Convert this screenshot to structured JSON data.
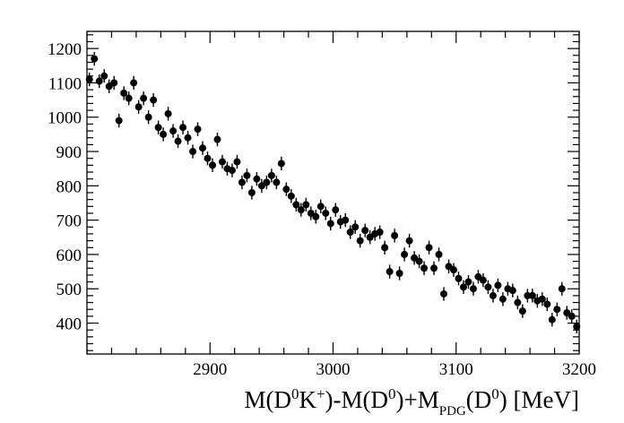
{
  "chart_data": {
    "type": "scatter",
    "xlabel": {
      "pre": "M(D",
      "sup1": "0",
      "mid1": "K",
      "sup2": "+",
      "mid2": ")-M(D",
      "sup3": "0",
      "mid3": ")+M",
      "sub": "PDG",
      "mid4": "(D",
      "sup4": "0",
      "post": ") [MeV]"
    },
    "ylabel": "",
    "xlim": [
      2800,
      3200
    ],
    "ylim": [
      310,
      1250
    ],
    "x_ticks": [
      "2900",
      "3000",
      "3100",
      "3200"
    ],
    "y_ticks": [
      "400",
      "500",
      "600",
      "700",
      "800",
      "900",
      "1000",
      "1100",
      "1200"
    ],
    "grid": false,
    "legend": "none",
    "marker": "filled circle with vertical error bar",
    "marker_color": "#000000",
    "series": [
      {
        "x": [
          2802,
          2806,
          2810,
          2814,
          2818,
          2822,
          2826,
          2830,
          2834,
          2838,
          2842,
          2846,
          2850,
          2854,
          2858,
          2862,
          2866,
          2870,
          2874,
          2878,
          2882,
          2886,
          2890,
          2894,
          2898,
          2902,
          2906,
          2910,
          2914,
          2918,
          2922,
          2926,
          2930,
          2934,
          2938,
          2942,
          2946,
          2950,
          2954,
          2958,
          2962,
          2966,
          2970,
          2974,
          2978,
          2982,
          2986,
          2990,
          2994,
          2998,
          3002,
          3006,
          3010,
          3014,
          3018,
          3022,
          3026,
          3030,
          3034,
          3038,
          3042,
          3046,
          3050,
          3054,
          3058,
          3062,
          3066,
          3070,
          3074,
          3078,
          3082,
          3086,
          3090,
          3094,
          3098,
          3102,
          3106,
          3110,
          3114,
          3118,
          3122,
          3126,
          3130,
          3134,
          3138,
          3142,
          3146,
          3150,
          3154,
          3158,
          3162,
          3166,
          3170,
          3174,
          3178,
          3182,
          3186,
          3190,
          3194,
          3198
        ],
        "y": [
          1110,
          1170,
          1105,
          1120,
          1090,
          1100,
          990,
          1070,
          1055,
          1100,
          1030,
          1055,
          1000,
          1050,
          970,
          950,
          1010,
          960,
          930,
          970,
          940,
          900,
          965,
          910,
          880,
          860,
          935,
          870,
          850,
          845,
          870,
          810,
          830,
          780,
          820,
          800,
          810,
          830,
          810,
          865,
          790,
          770,
          745,
          730,
          745,
          720,
          710,
          740,
          720,
          690,
          730,
          695,
          700,
          665,
          680,
          640,
          670,
          650,
          660,
          665,
          620,
          550,
          655,
          545,
          600,
          640,
          590,
          580,
          560,
          620,
          560,
          600,
          485,
          565,
          555,
          530,
          505,
          520,
          500,
          535,
          525,
          505,
          480,
          510,
          470,
          500,
          495,
          460,
          435,
          480,
          480,
          465,
          470,
          455,
          410,
          440,
          500,
          430,
          420,
          390
        ],
        "yerr": 20
      }
    ]
  }
}
